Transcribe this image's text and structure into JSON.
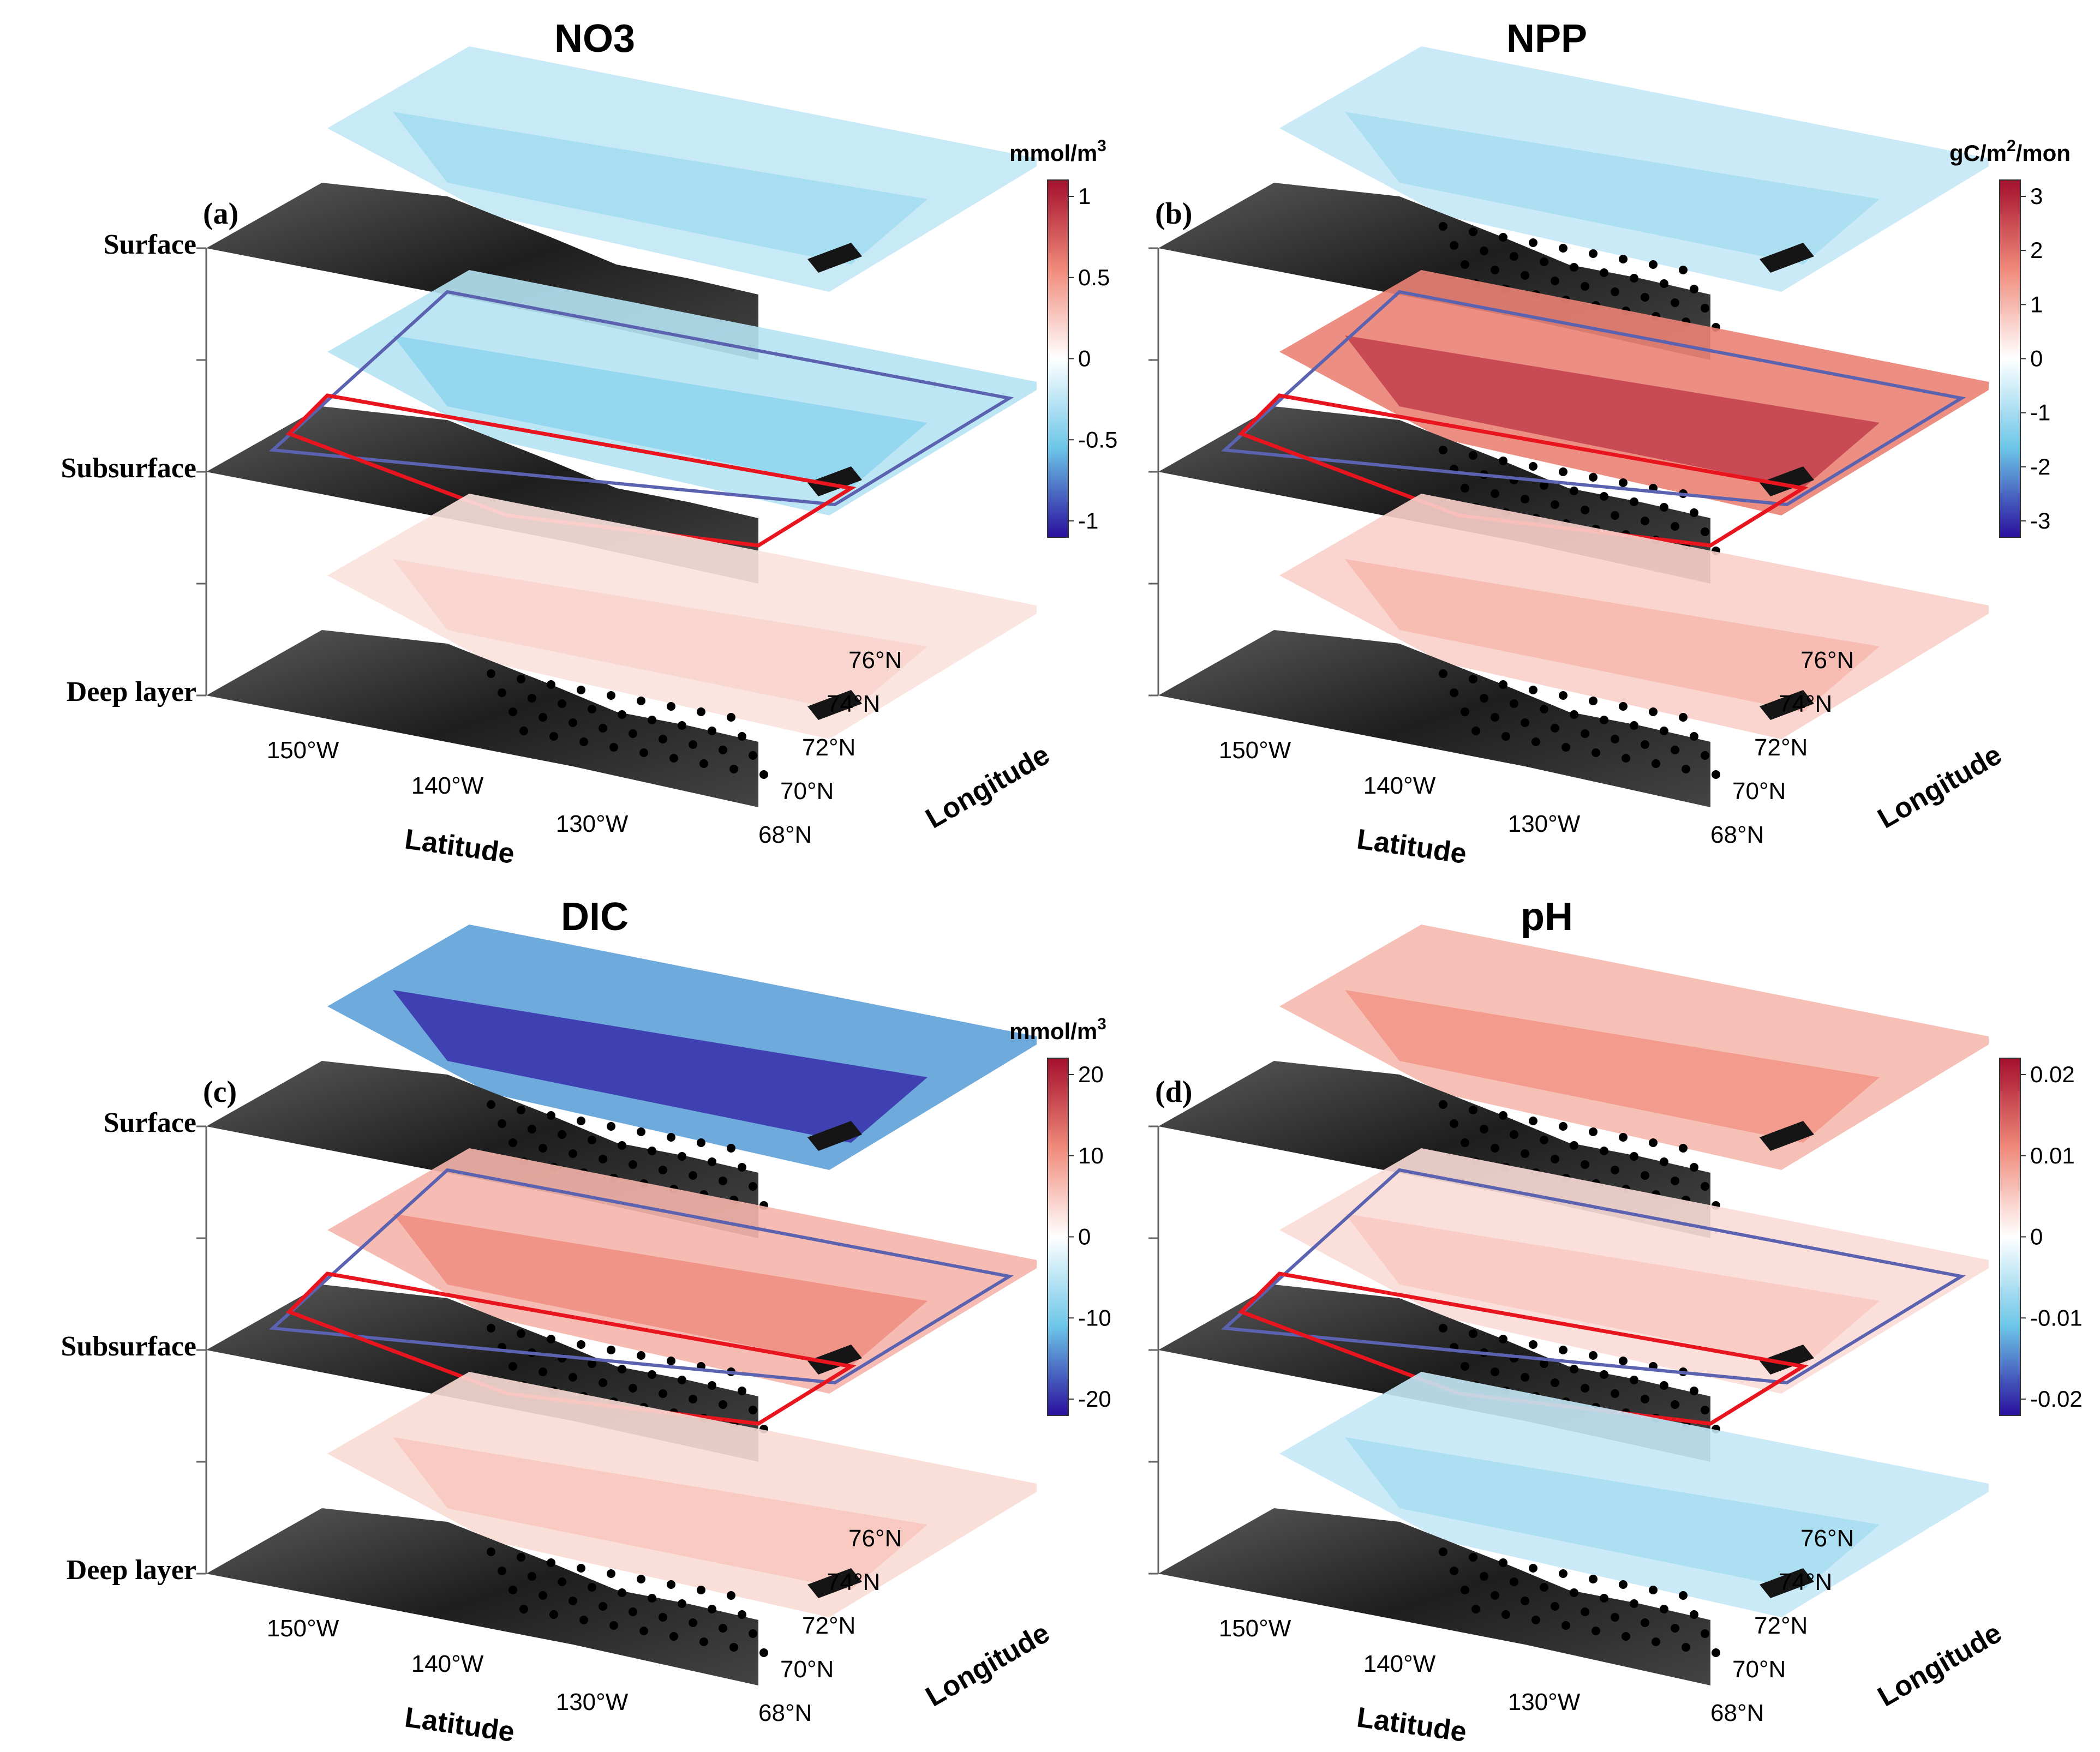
{
  "layers": [
    "Surface",
    "Subsurface",
    "Deep layer"
  ],
  "axes": {
    "latitude_label": "Latitude",
    "longitude_label": "Longitude",
    "lon_ticks": [
      "150°W",
      "140°W",
      "130°W"
    ],
    "lat_ticks": [
      "68°N",
      "70°N",
      "72°N",
      "74°N",
      "76°N"
    ]
  },
  "colors": {
    "negative_extreme": "#2a0f9e",
    "negative": "#2f6fd6",
    "neutral": "#ffffff",
    "positive": "#f08a7a",
    "positive_extreme": "#a50f2d",
    "land": "#3a3a3a",
    "region_outer": "#5b63b0",
    "region_inner": "#e8141e",
    "significance_dot": "#000000"
  },
  "panels": [
    {
      "letter": "(a)",
      "title": "NO3",
      "unit_main": "mmol/m",
      "unit_sup": "3",
      "unit_tail": "",
      "colorbar_ticks": [
        "1",
        "0.5",
        "0",
        "-0.5",
        "-1"
      ],
      "colorbar_range": [
        -1.2,
        1.2
      ],
      "layer_anomaly": [
        -0.25,
        -0.3,
        0.15
      ],
      "significant_layers": [
        "Deep layer"
      ]
    },
    {
      "letter": "(b)",
      "title": "NPP",
      "unit_main": "gC/m",
      "unit_sup": "2",
      "unit_tail": "/mon",
      "colorbar_ticks": [
        "3",
        "2",
        "1",
        "0",
        "-1",
        "-2",
        "-3"
      ],
      "colorbar_range": [
        -3,
        3
      ],
      "layer_anomaly": [
        -0.6,
        1.6,
        0.6
      ],
      "significant_layers": [
        "Surface",
        "Subsurface",
        "Deep layer"
      ]
    },
    {
      "letter": "(c)",
      "title": "DIC",
      "unit_main": "mmol/m",
      "unit_sup": "3",
      "unit_tail": "",
      "colorbar_ticks": [
        "20",
        "10",
        "0",
        "-10",
        "-20"
      ],
      "colorbar_range": [
        -25,
        25
      ],
      "layer_anomaly": [
        -15,
        8,
        4
      ],
      "significant_layers": [
        "Surface",
        "Subsurface",
        "Deep layer"
      ]
    },
    {
      "letter": "(d)",
      "title": "pH",
      "unit_main": "",
      "unit_sup": "",
      "unit_tail": "",
      "colorbar_ticks": [
        "0.02",
        "0.01",
        "0",
        "-0.01",
        "-0.02"
      ],
      "colorbar_range": [
        -0.02,
        0.02
      ],
      "layer_anomaly": [
        0.006,
        0.003,
        -0.004
      ],
      "significant_layers": [
        "Surface",
        "Subsurface",
        "Deep layer"
      ]
    }
  ]
}
